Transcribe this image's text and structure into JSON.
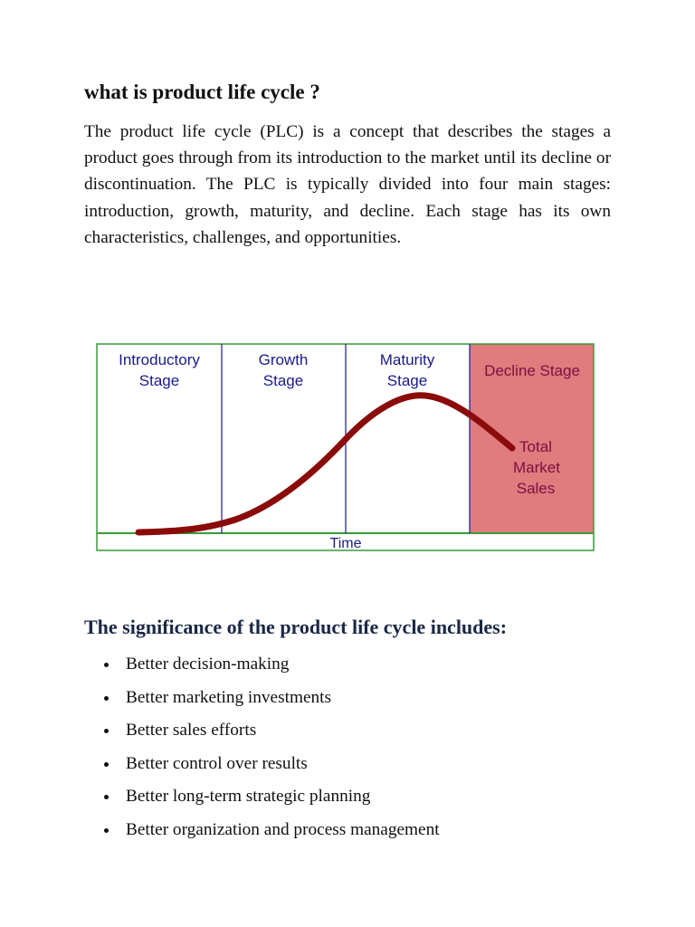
{
  "title": "what is product life cycle ?",
  "paragraph": "The product life cycle (PLC) is a concept that describes the stages a product goes through from its introduction to the market until its decline or discontinuation. The PLC is typically divided into four main stages: introduction, growth, maturity, and decline. Each stage has its own characteristics, challenges, and opportunities.",
  "diagram": {
    "stages": [
      {
        "line1": "Introductory",
        "line2": "Stage"
      },
      {
        "line1": "Growth",
        "line2": "Stage"
      },
      {
        "line1": "Maturity",
        "line2": "Stage"
      },
      {
        "line1": "Decline Stage",
        "line2": ""
      }
    ],
    "curve_label": [
      "Total",
      "Market",
      "Sales"
    ],
    "axis_label": "Time",
    "colors": {
      "border": "#3a9a3a",
      "divider": "#1a1a8a",
      "decline_fill": "#e07b7e",
      "curve": "#8b0a0a",
      "stage_text": "#1a1a8a",
      "decline_text": "#7a1040"
    }
  },
  "significance": {
    "heading": "The significance of the product life cycle includes:",
    "items": [
      "Better decision-making",
      "Better marketing investments",
      "Better sales efforts",
      "Better control over results",
      "Better long-term strategic planning",
      "Better organization and process management"
    ]
  }
}
